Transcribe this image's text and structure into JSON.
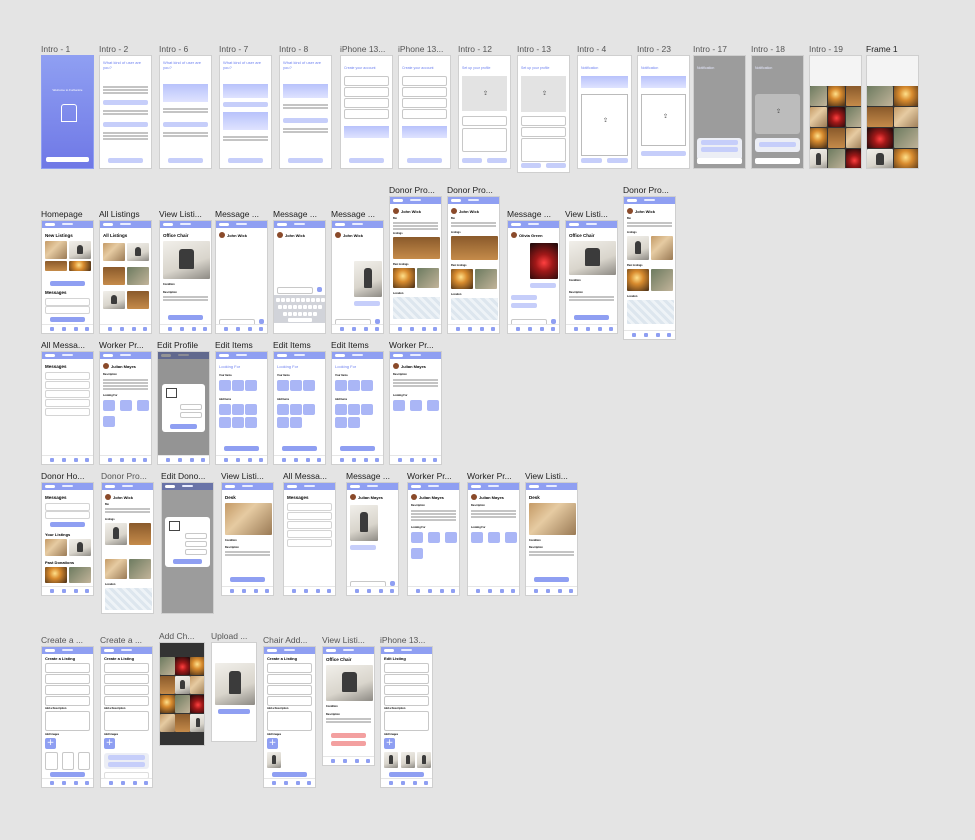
{
  "canvas": {
    "background": "#e4e4e4",
    "accent": "#8f9ff2"
  },
  "frames": {
    "intro1": "Intro - 1",
    "intro2": "Intro - 2",
    "intro6": "Intro - 6",
    "intro7": "Intro - 7",
    "intro8": "Intro - 8",
    "iphone13a": "iPhone 13...",
    "iphone13b": "iPhone 13...",
    "intro12": "Intro - 12",
    "intro13": "Intro - 13",
    "intro4": "Intro - 4",
    "intro23": "Intro - 23",
    "intro17": "Intro - 17",
    "intro18": "Intro - 18",
    "intro19": "Intro - 19",
    "frame1": "Frame 1",
    "donorPro1": "Donor Pro...",
    "donorPro2": "Donor Pro...",
    "donorPro3": "Donor Pro...",
    "homepage": "Homepage",
    "allListings": "All Listings",
    "viewListing1": "View Listi...",
    "message1": "Message ...",
    "message2": "Message ...",
    "message3": "Message ...",
    "message4": "Message ...",
    "viewListing2": "View Listi...",
    "allMessages1": "All Messa...",
    "workerPro1": "Worker Pr...",
    "editProfile": "Edit Profile",
    "editItems1": "Edit Items",
    "editItems2": "Edit Items",
    "editItems3": "Edit Items",
    "workerPro2": "Worker Pr...",
    "donorHome": "Donor Ho...",
    "donorPro4": "Donor Pro...",
    "editDonor": "Edit Dono...",
    "viewListing3": "View Listi...",
    "allMessages2": "All Messa...",
    "message5": "Message ...",
    "workerPro3": "Worker Pr...",
    "workerPro4": "Worker Pr...",
    "viewListing4": "View Listi...",
    "createListing1": "Create a ...",
    "createListing2": "Create a ...",
    "addChair": "Add Ch...",
    "upload": "Upload ...",
    "chairAdd": "Chair Add...",
    "viewListing5": "View Listi...",
    "iphone13c": "iPhone 13..."
  },
  "screens": {
    "welcome": "Welcome to Furbanize",
    "what_kind": "What kind of user are you?",
    "create_account": "Create your account",
    "setup_profile": "Set up your profile",
    "notification": "Notification",
    "new_listings": "New Listings",
    "messages": "Messages",
    "all_listings": "All Listings",
    "office_chair": "Office Chair",
    "john_wick": "John Wick",
    "olivia_green": "Olivia Green",
    "julian_mayes": "Julian Mayes",
    "looking_for": "Looking For",
    "your_items": "Your Items",
    "add_items": "Add Items",
    "your_listings": "Your Listings",
    "past_donations": "Past Donations",
    "desk": "Desk",
    "create_listing": "Create a Listing",
    "edit_listing": "Edit Listing",
    "description": "Description",
    "condition": "Condition",
    "location": "Location",
    "listings": "Listings",
    "past_listings": "Past Listings",
    "bio": "Bio",
    "add_images": "Add Images",
    "add_description": "Add a Description"
  }
}
